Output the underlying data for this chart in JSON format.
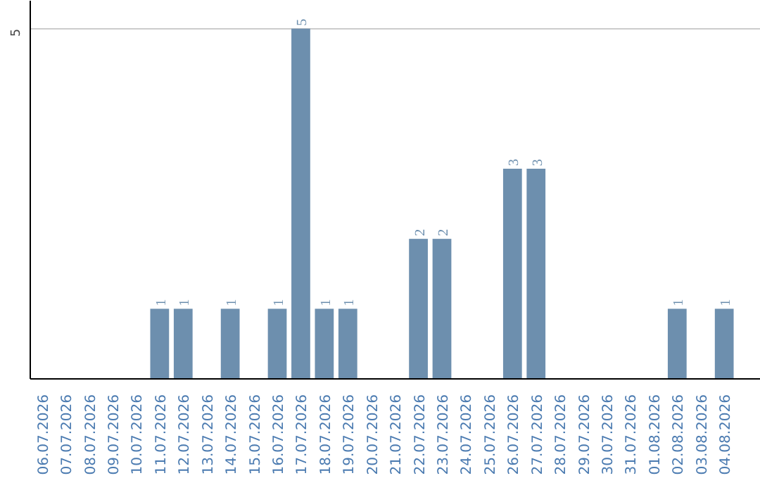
{
  "chart_data": {
    "type": "bar",
    "categories": [
      "06.07.2026",
      "07.07.2026",
      "08.07.2026",
      "09.07.2026",
      "10.07.2026",
      "11.07.2026",
      "12.07.2026",
      "13.07.2026",
      "14.07.2026",
      "15.07.2026",
      "16.07.2026",
      "17.07.2026",
      "18.07.2026",
      "19.07.2026",
      "20.07.2026",
      "21.07.2026",
      "22.07.2026",
      "23.07.2026",
      "24.07.2026",
      "25.07.2026",
      "26.07.2026",
      "27.07.2026",
      "28.07.2026",
      "29.07.2026",
      "30.07.2026",
      "31.07.2026",
      "01.08.2026",
      "02.08.2026",
      "03.08.2026",
      "04.08.2026"
    ],
    "values": [
      0,
      0,
      0,
      0,
      0,
      1,
      1,
      0,
      1,
      0,
      1,
      5,
      1,
      1,
      0,
      0,
      2,
      2,
      0,
      0,
      3,
      3,
      0,
      0,
      0,
      0,
      0,
      1,
      0,
      1
    ],
    "value_labels": [
      null,
      null,
      null,
      null,
      null,
      "1",
      "1",
      null,
      "1",
      null,
      "1",
      "5",
      "1",
      "1",
      null,
      null,
      "2",
      "2",
      null,
      null,
      "3",
      "3",
      null,
      null,
      null,
      null,
      null,
      "1",
      null,
      "1"
    ],
    "color": "#6d8fae",
    "ylim": [
      0,
      5.4
    ],
    "yticks": [
      5
    ],
    "grid": "y"
  }
}
